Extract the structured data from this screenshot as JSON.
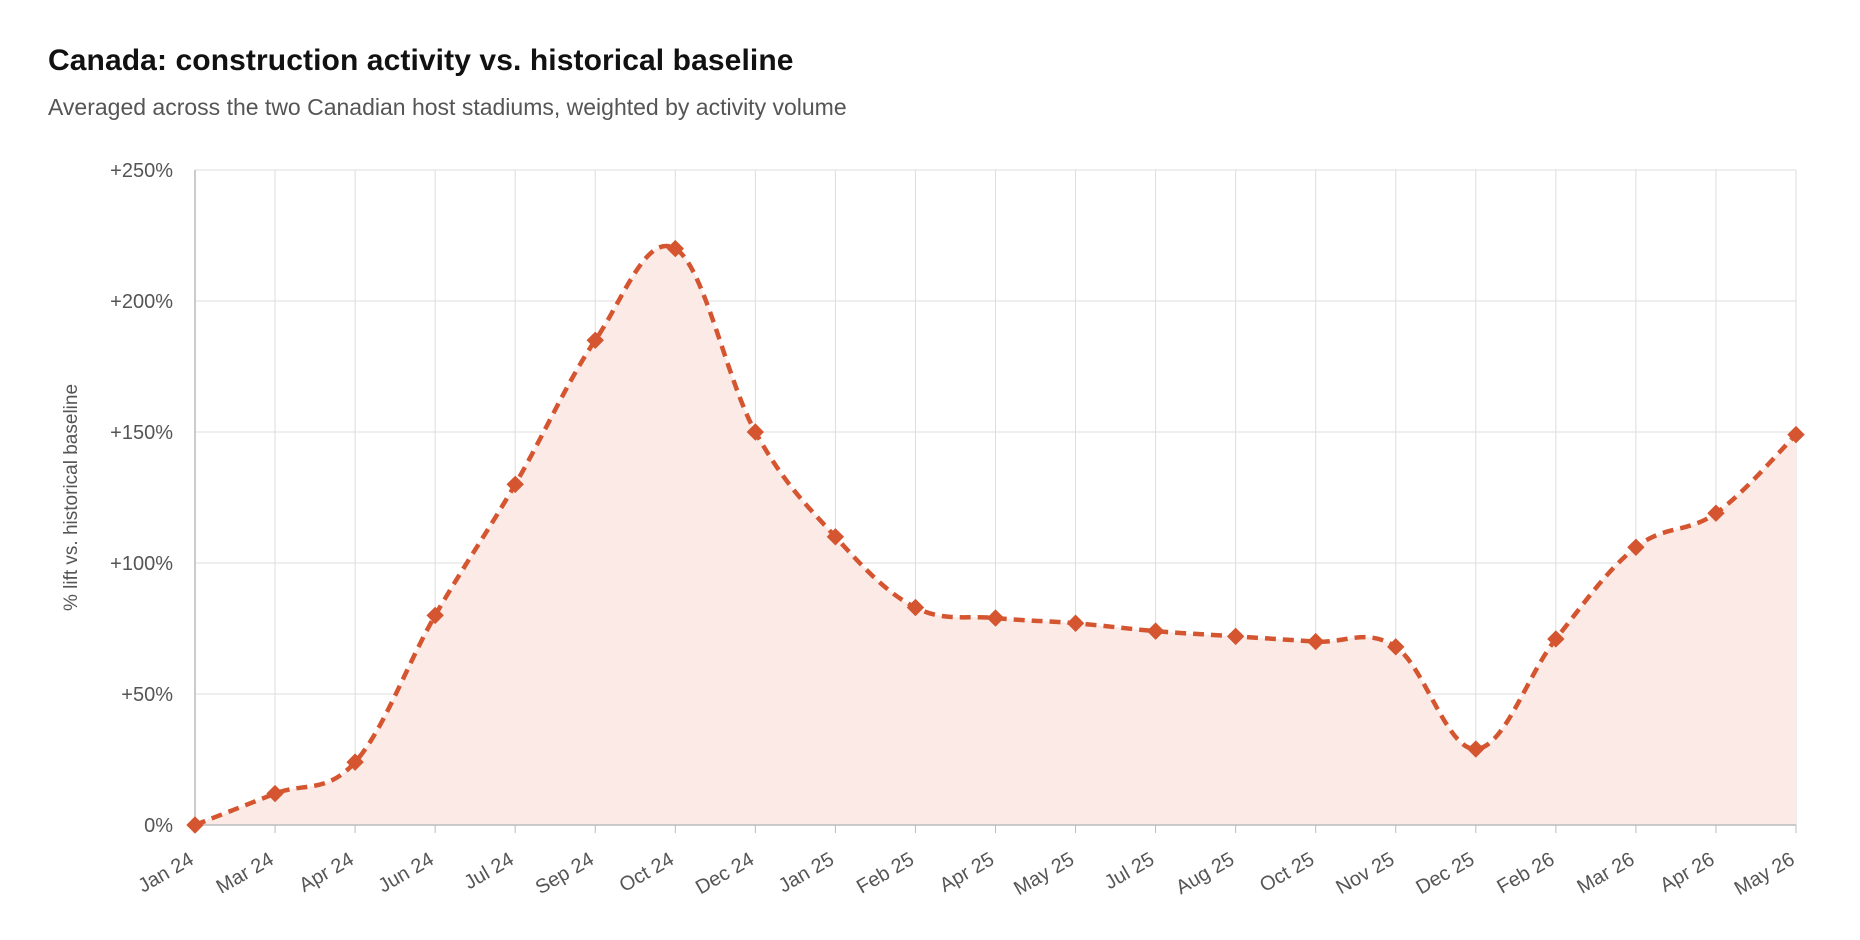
{
  "header": {
    "title": "Canada: construction activity vs. historical baseline",
    "subtitle": "Averaged across the two Canadian host stadiums, weighted by activity volume"
  },
  "colors": {
    "line": "#d4552f",
    "fill": "#fbeae6",
    "grid": "#dddddd",
    "axis": "#bbbbbb"
  },
  "chart_data": {
    "type": "area",
    "title": "Canada: construction activity vs. historical baseline",
    "subtitle": "Averaged across the two Canadian host stadiums, weighted by activity volume",
    "xlabel": "",
    "ylabel": "% lift vs. historical baseline",
    "ylim": [
      0,
      250
    ],
    "yticks": [
      0,
      50,
      100,
      150,
      200,
      250
    ],
    "ytick_labels": [
      "0%",
      "+50%",
      "+100%",
      "+150%",
      "+200%",
      "+250%"
    ],
    "categories": [
      "Jan 24",
      "Mar 24",
      "Apr 24",
      "Jun 24",
      "Jul 24",
      "Sep 24",
      "Oct 24",
      "Dec 24",
      "Jan 25",
      "Feb 25",
      "Apr 25",
      "May 25",
      "Jul 25",
      "Aug 25",
      "Oct 25",
      "Nov 25",
      "Dec 25",
      "Feb 26",
      "Mar 26",
      "Apr 26",
      "May 26"
    ],
    "series": [
      {
        "values": [
          0,
          12,
          24,
          80,
          130,
          185,
          220,
          150,
          110,
          83,
          79,
          77,
          74,
          72,
          70,
          68,
          29,
          71,
          106,
          119,
          149
        ],
        "style": "dashed",
        "marker": "diamond"
      }
    ],
    "grid": true,
    "legend": "none"
  }
}
